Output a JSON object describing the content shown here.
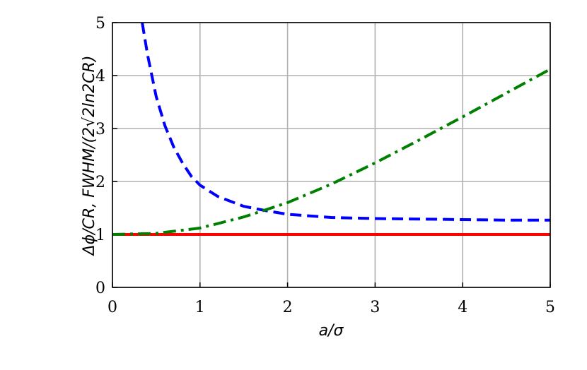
{
  "chart_data": {
    "type": "line",
    "xlabel": "a/σ",
    "ylabel": "Δϕ/CR,  FWHM/(2√2ln2CR)",
    "xlim": [
      0,
      5
    ],
    "ylim": [
      0,
      5
    ],
    "xticks": [
      0,
      1,
      2,
      3,
      4,
      5
    ],
    "yticks": [
      0,
      1,
      2,
      3,
      4,
      5
    ],
    "grid": true,
    "series": [
      {
        "color": "#ff0000",
        "style": "solid",
        "x": [
          0,
          5
        ],
        "values": [
          1,
          1
        ]
      },
      {
        "color": "#0000ff",
        "style": "dashed",
        "x": [
          0.34,
          0.4,
          0.5,
          0.6,
          0.7,
          0.8,
          0.9,
          1,
          1.2,
          1.5,
          1.75,
          2,
          2.5,
          3,
          3.5,
          4,
          4.5,
          5
        ],
        "values": [
          5.0,
          4.4,
          3.6,
          3.05,
          2.65,
          2.35,
          2.1,
          1.93,
          1.72,
          1.53,
          1.45,
          1.38,
          1.32,
          1.3,
          1.29,
          1.28,
          1.27,
          1.27
        ]
      },
      {
        "color": "#008000",
        "style": "dashdot",
        "x": [
          0,
          0.5,
          1,
          1.5,
          2,
          2.5,
          3,
          3.5,
          4,
          4.5,
          5
        ],
        "values": [
          1,
          1.02,
          1.12,
          1.33,
          1.6,
          1.95,
          2.35,
          2.78,
          3.22,
          3.67,
          4.12
        ]
      }
    ]
  }
}
